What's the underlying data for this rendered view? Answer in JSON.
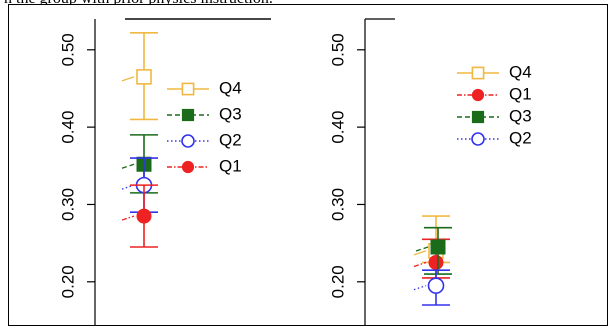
{
  "caption": "h the group with prior physics instruction.",
  "chart_data": [
    {
      "type": "scatter",
      "title": "",
      "xlabel": "",
      "ylabel": "",
      "ylim": [
        0.17,
        0.545
      ],
      "yticks": [
        "0.20",
        "0.30",
        "0.40",
        "0.50"
      ],
      "ytick_values": [
        0.2,
        0.3,
        0.4,
        0.5
      ],
      "legend_position": "right",
      "series": [
        {
          "name": "Q4",
          "color": "#f0b840",
          "marker": "open-square",
          "line": "solid",
          "y": 0.465,
          "ci": [
            0.41,
            0.522
          ]
        },
        {
          "name": "Q3",
          "color": "#1a6b1a",
          "marker": "filled-square",
          "line": "dashed",
          "y": 0.352,
          "ci": [
            0.315,
            0.39
          ]
        },
        {
          "name": "Q2",
          "color": "#3333ee",
          "marker": "open-circle",
          "line": "dotted",
          "y": 0.325,
          "ci": [
            0.29,
            0.36
          ]
        },
        {
          "name": "Q1",
          "color": "#ee2222",
          "marker": "filled-circle",
          "line": "dashdot",
          "y": 0.285,
          "ci": [
            0.245,
            0.325
          ]
        }
      ]
    },
    {
      "type": "scatter",
      "title": "",
      "xlabel": "",
      "ylabel": "",
      "ylim": [
        0.17,
        0.545
      ],
      "yticks": [
        "0.20",
        "0.30",
        "0.40",
        "0.50"
      ],
      "ytick_values": [
        0.2,
        0.3,
        0.4,
        0.5
      ],
      "legend_position": "top-right",
      "series": [
        {
          "name": "Q4",
          "color": "#f0b840",
          "marker": "open-square",
          "line": "solid",
          "y": 0.24,
          "ci": [
            0.225,
            0.285
          ]
        },
        {
          "name": "Q1",
          "color": "#ee2222",
          "marker": "filled-circle",
          "line": "dashdot",
          "y": 0.225,
          "ci": [
            0.205,
            0.255
          ]
        },
        {
          "name": "Q3",
          "color": "#1a6b1a",
          "marker": "filled-square",
          "line": "dashed",
          "y": 0.245,
          "ci": [
            0.21,
            0.27
          ]
        },
        {
          "name": "Q2",
          "color": "#3333ee",
          "marker": "open-circle",
          "line": "dotted",
          "y": 0.195,
          "ci": [
            0.17,
            0.215
          ]
        }
      ]
    }
  ]
}
